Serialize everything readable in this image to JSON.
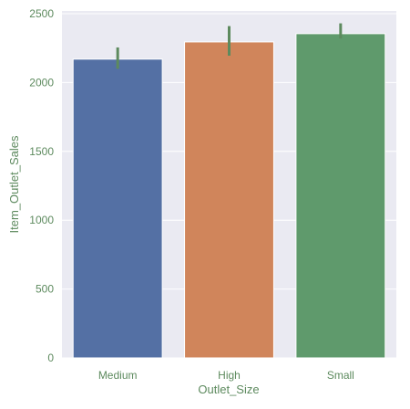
{
  "chart_data": {
    "type": "bar",
    "xlabel": "Outlet_Size",
    "ylabel": "Item_Outlet_Sales",
    "ylim": [
      0,
      2520
    ],
    "y_ticks": [
      0,
      500,
      1000,
      1500,
      2000,
      2500
    ],
    "grid": "horizontal",
    "categories": [
      "Medium",
      "High",
      "Small"
    ],
    "values": [
      2170,
      2295,
      2355
    ],
    "error_bars": [
      {
        "low": 2100,
        "high": 2255
      },
      {
        "low": 2195,
        "high": 2410
      },
      {
        "low": 2320,
        "high": 2430
      }
    ],
    "bar_colors": [
      "#5470a4",
      "#d0855b",
      "#5f9a6c"
    ],
    "text_color": "#5d8a5e",
    "error_bar_color": "#5d8a5e",
    "plot_background": "#eaeaf2",
    "grid_color": "#ffffff"
  }
}
